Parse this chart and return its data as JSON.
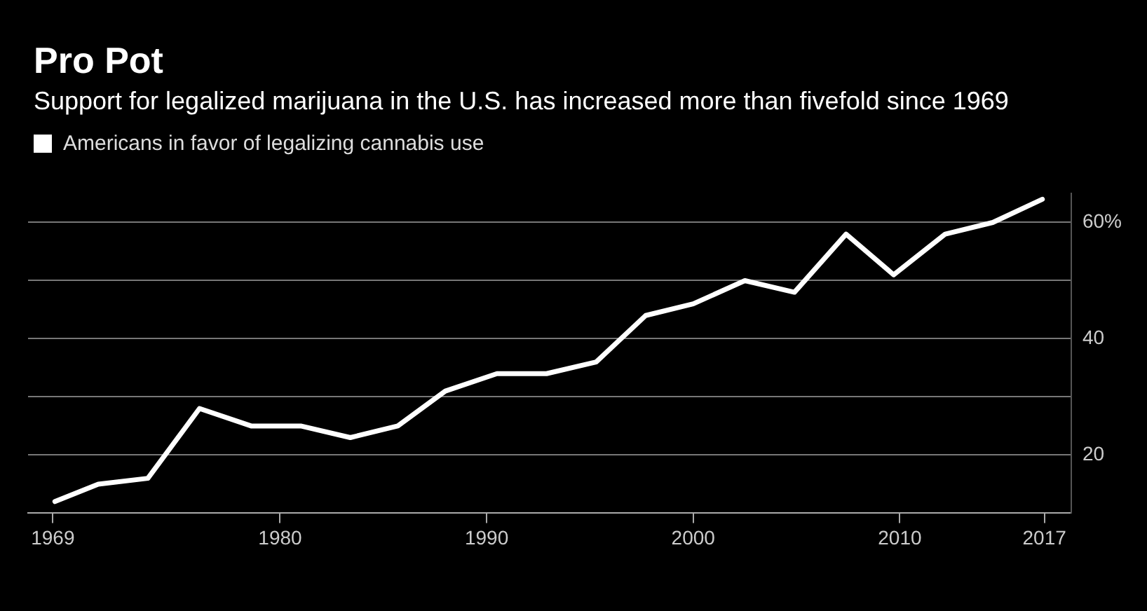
{
  "chart_data": {
    "type": "line",
    "title": "Pro Pot",
    "subtitle": "Support for legalized marijuana in the U.S. has increased more than fivefold since 1969",
    "series": [
      {
        "name": "Americans in favor of legalizing cannabis use",
        "color": "#ffffff",
        "x": [
          1969.1,
          1971.2,
          1973.6,
          1976.1,
          1978.6,
          1981,
          1983.4,
          1985.7,
          1988,
          1990.5,
          1992.9,
          1995.3,
          1997.7,
          2000,
          2002.5,
          2004.9,
          2007.4,
          2009.7,
          2012.2,
          2014.5,
          2016.9
        ],
        "values": [
          12,
          15,
          16,
          28,
          25,
          25,
          23,
          25,
          31,
          34,
          34,
          36,
          44,
          46,
          50,
          48,
          58,
          51,
          58,
          60,
          64
        ]
      }
    ],
    "xlim": [
      1967.8,
      2018.3
    ],
    "xticks": [
      1969,
      1980,
      1990,
      2000,
      2010,
      2017
    ],
    "ylim": [
      10,
      65
    ],
    "yticks": [
      {
        "value": 20,
        "label": "20"
      },
      {
        "value": 30,
        "label": null
      },
      {
        "value": 40,
        "label": "40"
      },
      {
        "value": 50,
        "label": null
      },
      {
        "value": 60,
        "label": "60%"
      }
    ],
    "grid": "y",
    "legend": "top left",
    "marker": "none",
    "line_style": "solid"
  }
}
